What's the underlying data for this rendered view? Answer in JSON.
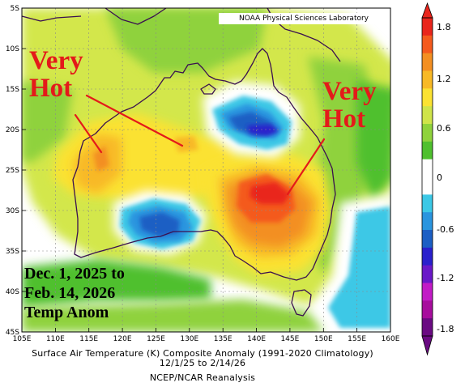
{
  "source_label": "NOAA Physical Sciences Laboratory",
  "annotations": {
    "left_hot_line1": "Very",
    "left_hot_line2": "Hot",
    "right_hot_line1": "Very",
    "right_hot_line2": "Hot",
    "period_line1": "Dec. 1, 2025 to",
    "period_line2": "Feb. 14, 2026",
    "period_line3": "Temp Anom"
  },
  "caption": {
    "line1": "Surface Air Temperature (K) Composite Anomaly (1991-2020 Climatology)",
    "line2": "12/1/25  to 2/14/26",
    "line3": "NCEP/NCAR Reanalysis"
  },
  "axes": {
    "lon_labels": [
      "105E",
      "110E",
      "115E",
      "120E",
      "125E",
      "130E",
      "135E",
      "140E",
      "145E",
      "150E",
      "155E",
      "160E"
    ],
    "lat_labels": [
      "5S",
      "10S",
      "15S",
      "20S",
      "25S",
      "30S",
      "35S",
      "40S",
      "45S"
    ]
  },
  "colorbar": {
    "labels": [
      "1.8",
      "1.2",
      "0.6",
      "0",
      "-0.6",
      "-1.2",
      "-1.8"
    ],
    "colors": [
      "#e9251c",
      "#f45a1d",
      "#f38f22",
      "#f8b926",
      "#fbe232",
      "#cfe44a",
      "#8fd23c",
      "#4fc02e",
      "#ffffff",
      "#ffffff",
      "#3cc8e6",
      "#2a95df",
      "#1c5fc4",
      "#2a20cc",
      "#6a18c8",
      "#c21bc6",
      "#a70d9d",
      "#6a0a82"
    ]
  },
  "colors": {
    "hot_text": "#e41a1a",
    "coast": "#3a1050"
  }
}
